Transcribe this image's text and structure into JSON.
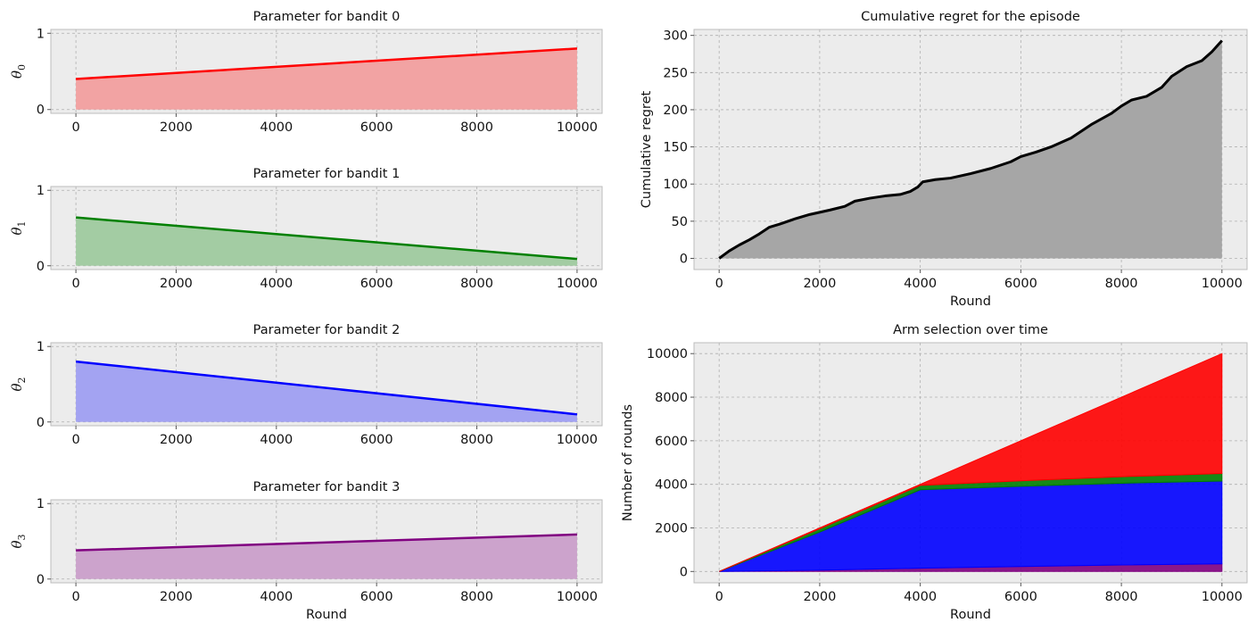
{
  "chart_data": [
    {
      "type": "area",
      "title": "Parameter for bandit 0",
      "ylabel": "θ",
      "ylabel_sub": "0",
      "xlabel": "",
      "x": [
        0,
        10000
      ],
      "series": [
        {
          "values": [
            0.4,
            0.8
          ]
        }
      ],
      "xlim": [
        -500,
        10500
      ],
      "ylim": [
        -0.05,
        1.05
      ],
      "xticks": [
        0,
        2000,
        4000,
        6000,
        8000,
        10000
      ],
      "yticks": [
        0,
        1
      ],
      "line_color": "#ff0000",
      "fill_color": "#f2a3a3",
      "grid": true
    },
    {
      "type": "area",
      "title": "Parameter for bandit 1",
      "ylabel": "θ",
      "ylabel_sub": "1",
      "xlabel": "",
      "x": [
        0,
        10000
      ],
      "series": [
        {
          "values": [
            0.64,
            0.09
          ]
        }
      ],
      "xlim": [
        -500,
        10500
      ],
      "ylim": [
        -0.05,
        1.05
      ],
      "xticks": [
        0,
        2000,
        4000,
        6000,
        8000,
        10000
      ],
      "yticks": [
        0,
        1
      ],
      "line_color": "#008000",
      "fill_color": "#a3cca3",
      "grid": true
    },
    {
      "type": "area",
      "title": "Parameter for bandit 2",
      "ylabel": "θ",
      "ylabel_sub": "2",
      "xlabel": "",
      "x": [
        0,
        10000
      ],
      "series": [
        {
          "values": [
            0.8,
            0.1
          ]
        }
      ],
      "xlim": [
        -500,
        10500
      ],
      "ylim": [
        -0.05,
        1.05
      ],
      "xticks": [
        0,
        2000,
        4000,
        6000,
        8000,
        10000
      ],
      "yticks": [
        0,
        1
      ],
      "line_color": "#0000ff",
      "fill_color": "#a3a3f2",
      "grid": true
    },
    {
      "type": "area",
      "title": "Parameter for bandit 3",
      "ylabel": "θ",
      "ylabel_sub": "3",
      "xlabel": "Round",
      "x": [
        0,
        10000
      ],
      "series": [
        {
          "values": [
            0.38,
            0.59
          ]
        }
      ],
      "xlim": [
        -500,
        10500
      ],
      "ylim": [
        -0.05,
        1.05
      ],
      "xticks": [
        0,
        2000,
        4000,
        6000,
        8000,
        10000
      ],
      "yticks": [
        0,
        1
      ],
      "line_color": "#800080",
      "fill_color": "#cca3cc",
      "grid": true
    },
    {
      "type": "area",
      "title": "Cumulative regret for the episode",
      "ylabel": "Cumulative regret",
      "xlabel": "Round",
      "x": [
        0,
        100,
        200,
        400,
        600,
        800,
        1000,
        1200,
        1500,
        1800,
        2000,
        2200,
        2500,
        2700,
        3000,
        3300,
        3600,
        3800,
        3950,
        4050,
        4300,
        4600,
        5000,
        5400,
        5800,
        6000,
        6300,
        6600,
        7000,
        7400,
        7800,
        8000,
        8200,
        8500,
        8800,
        9000,
        9300,
        9600,
        9800,
        10000
      ],
      "series": [
        {
          "name": "",
          "values": [
            0,
            5,
            10,
            18,
            25,
            33,
            42,
            46,
            53,
            59,
            62,
            65,
            70,
            77,
            81,
            84,
            86,
            90,
            96,
            103,
            106,
            108,
            114,
            121,
            130,
            137,
            143,
            150,
            162,
            180,
            195,
            205,
            213,
            218,
            230,
            245,
            258,
            266,
            278,
            293
          ]
        }
      ],
      "xlim": [
        -500,
        10500
      ],
      "ylim": [
        -15,
        308
      ],
      "xticks": [
        0,
        2000,
        4000,
        6000,
        8000,
        10000
      ],
      "yticks": [
        0,
        50,
        100,
        150,
        200,
        250,
        300
      ],
      "line_color": "#000000",
      "fill_color": "#a6a6a6",
      "grid": true
    },
    {
      "type": "area",
      "title": "Arm selection over time",
      "ylabel": "Number of rounds",
      "xlabel": "Round",
      "x": [
        0,
        2000,
        4000,
        6000,
        8000,
        10000
      ],
      "series": [
        {
          "color": "#800080",
          "values": [
            0,
            60,
            150,
            230,
            300,
            350
          ]
        },
        {
          "color": "#0000ff",
          "values": [
            0,
            1750,
            3600,
            3680,
            3750,
            3800
          ]
        },
        {
          "color": "#008000",
          "values": [
            0,
            150,
            200,
            250,
            300,
            350
          ]
        },
        {
          "color": "#ff0000",
          "values": [
            0,
            40,
            50,
            1840,
            3650,
            5500
          ]
        }
      ],
      "xlim": [
        -500,
        10500
      ],
      "ylim": [
        -520,
        10500
      ],
      "xticks": [
        0,
        2000,
        4000,
        6000,
        8000,
        10000
      ],
      "yticks": [
        0,
        2000,
        4000,
        6000,
        8000,
        10000
      ],
      "stacked": true,
      "grid": true
    }
  ]
}
